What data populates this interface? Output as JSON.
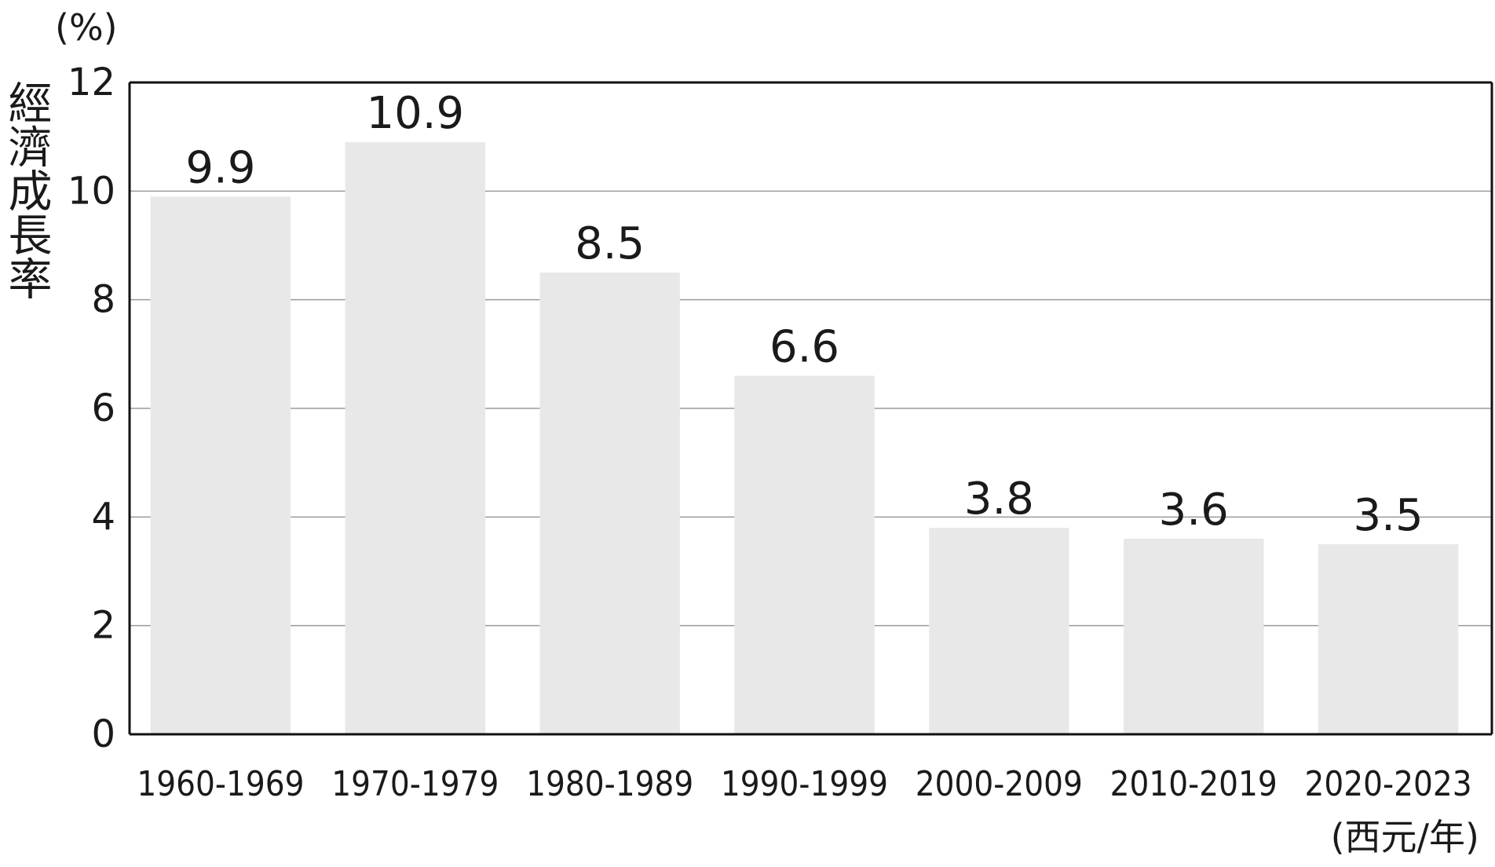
{
  "chart_data": {
    "type": "bar",
    "title": "",
    "ylabel": "經濟成長率",
    "y_unit": "(%)",
    "x_unit": "(西元/年)",
    "ylim": [
      0,
      12
    ],
    "yticks": [
      0,
      2,
      4,
      6,
      8,
      10,
      12
    ],
    "grid": true,
    "categories": [
      "1960-1969",
      "1970-1979",
      "1980-1989",
      "1990-1999",
      "2000-2009",
      "2010-2019",
      "2020-2023"
    ],
    "values": [
      9.9,
      10.9,
      8.5,
      6.6,
      3.8,
      3.6,
      3.5
    ],
    "data_labels": [
      "9.9",
      "10.9",
      "8.5",
      "6.6",
      "3.8",
      "3.6",
      "3.5"
    ],
    "colors": {
      "bar": "#e8e8e8",
      "grid": "#9a9a9a",
      "axis": "#111111",
      "text": "#1a1a1a"
    }
  }
}
